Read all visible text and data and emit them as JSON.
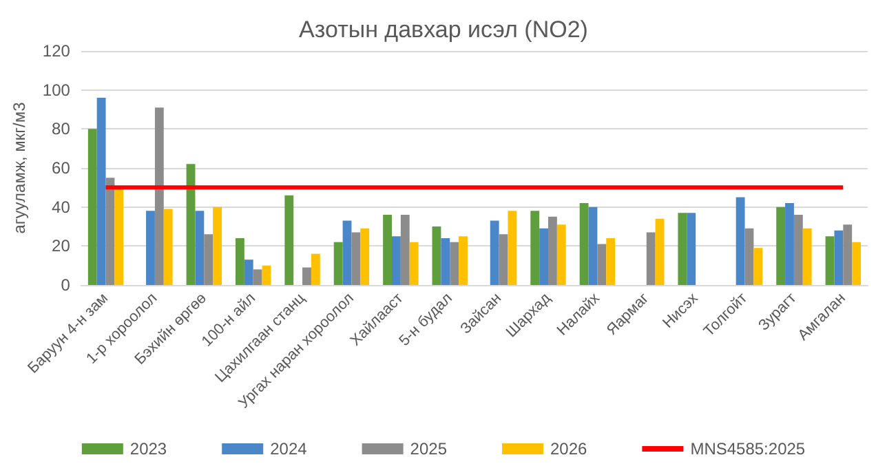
{
  "chart_data": {
    "type": "bar",
    "title": "Азотын давхар исэл (NO2)",
    "ylabel": "агууламж, мкг/м3",
    "categories": [
      "Баруун 4-н зам",
      "1-р хороолол",
      "Бэхийн өргөө",
      "100-н айл",
      "Цахилгаан станц",
      "Ургах наран хороолол",
      "Хайлааст",
      "5-н будал",
      "Зайсан",
      "Шархад",
      "Налайх",
      "Яармаг",
      "Нисэх",
      "Толгойт",
      "Зурагт",
      "Амгалан"
    ],
    "series": [
      {
        "name": "2023",
        "color": "#5f9e3c",
        "values": [
          80,
          null,
          62,
          24,
          46,
          22,
          36,
          30,
          null,
          38,
          42,
          null,
          37,
          null,
          40,
          25
        ]
      },
      {
        "name": "2024",
        "color": "#4a87c8",
        "values": [
          96,
          38,
          38,
          13,
          null,
          33,
          25,
          24,
          33,
          29,
          40,
          null,
          37,
          45,
          42,
          28
        ]
      },
      {
        "name": "2025",
        "color": "#8c8c8c",
        "values": [
          55,
          91,
          26,
          8,
          9,
          27,
          36,
          22,
          26,
          35,
          21,
          27,
          null,
          29,
          36,
          31
        ]
      },
      {
        "name": "2026",
        "color": "#ffc000",
        "values": [
          50,
          39,
          40,
          10,
          16,
          29,
          22,
          25,
          38,
          31,
          24,
          34,
          null,
          19,
          29,
          22
        ]
      },
      {
        "name": "MNS4585:2025",
        "type": "line",
        "color": "#ff0000",
        "values": [
          50,
          50,
          50,
          50,
          50,
          50,
          50,
          50,
          50,
          50,
          50,
          50,
          50,
          50,
          50,
          50
        ]
      }
    ],
    "marker": "none",
    "ylim": [
      0,
      120
    ],
    "yticks": [
      0,
      20,
      40,
      60,
      80,
      100,
      120
    ],
    "grid": "y",
    "legend": "bottom"
  }
}
